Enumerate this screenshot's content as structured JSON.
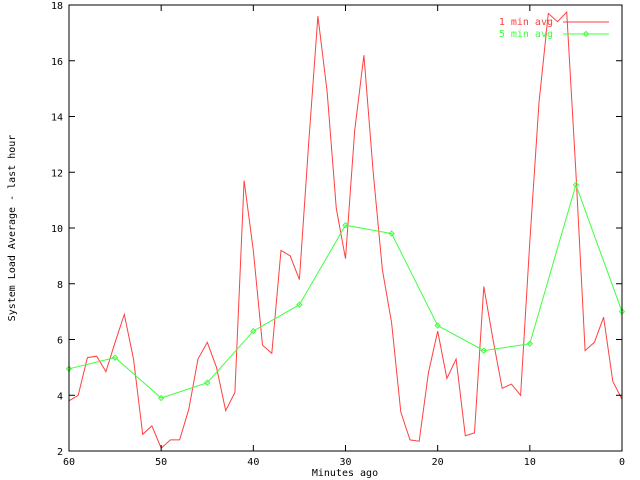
{
  "chart_data": {
    "type": "line",
    "title": "",
    "xlabel": "Minutes ago",
    "ylabel": "System Load Average - last hour",
    "xlim": [
      60,
      0
    ],
    "ylim": [
      2,
      18
    ],
    "x_reversed": true,
    "xticks": [
      60,
      50,
      40,
      30,
      20,
      10,
      0
    ],
    "yticks": [
      2,
      4,
      6,
      8,
      10,
      12,
      14,
      16,
      18
    ],
    "grid": false,
    "legend_placement": "top-right",
    "series": [
      {
        "name": "1 min avg",
        "color": "#ff4040",
        "markers": false,
        "x": [
          60,
          59,
          58,
          57,
          56,
          55,
          54,
          53,
          52,
          51,
          50,
          49,
          48,
          47,
          46,
          45,
          44,
          43,
          42,
          41,
          40,
          39,
          38,
          37,
          36,
          35,
          34,
          33,
          32,
          31,
          30,
          29,
          28,
          27,
          26,
          25,
          24,
          23,
          22,
          21,
          20,
          19,
          18,
          17,
          16,
          15,
          14,
          13,
          12,
          11,
          10,
          9,
          8,
          7,
          6,
          5,
          4,
          3,
          2,
          1,
          0
        ],
        "y": [
          3.8,
          4.0,
          5.35,
          5.4,
          4.85,
          5.9,
          6.9,
          5.3,
          2.6,
          2.9,
          2.1,
          2.4,
          2.4,
          3.5,
          5.3,
          5.9,
          5.0,
          3.45,
          4.1,
          11.7,
          9.2,
          5.8,
          5.5,
          9.2,
          9.0,
          8.15,
          13.0,
          17.6,
          14.9,
          10.7,
          8.9,
          13.5,
          16.2,
          12.0,
          8.5,
          6.6,
          3.4,
          2.4,
          2.35,
          4.8,
          6.3,
          4.6,
          5.3,
          2.55,
          2.65,
          7.9,
          6.0,
          4.25,
          4.4,
          4.0,
          9.5,
          14.5,
          17.7,
          17.4,
          17.75,
          12.0,
          5.6,
          5.9,
          6.8,
          4.5,
          3.85
        ]
      },
      {
        "name": "5 min avg",
        "color": "#40ff40",
        "markers": true,
        "x": [
          60,
          55,
          50,
          45,
          40,
          35,
          30,
          25,
          20,
          15,
          10,
          5,
          0
        ],
        "y": [
          4.95,
          5.35,
          3.9,
          4.45,
          6.3,
          7.25,
          10.1,
          9.8,
          6.5,
          5.6,
          5.85,
          11.55,
          7.0
        ]
      }
    ]
  }
}
